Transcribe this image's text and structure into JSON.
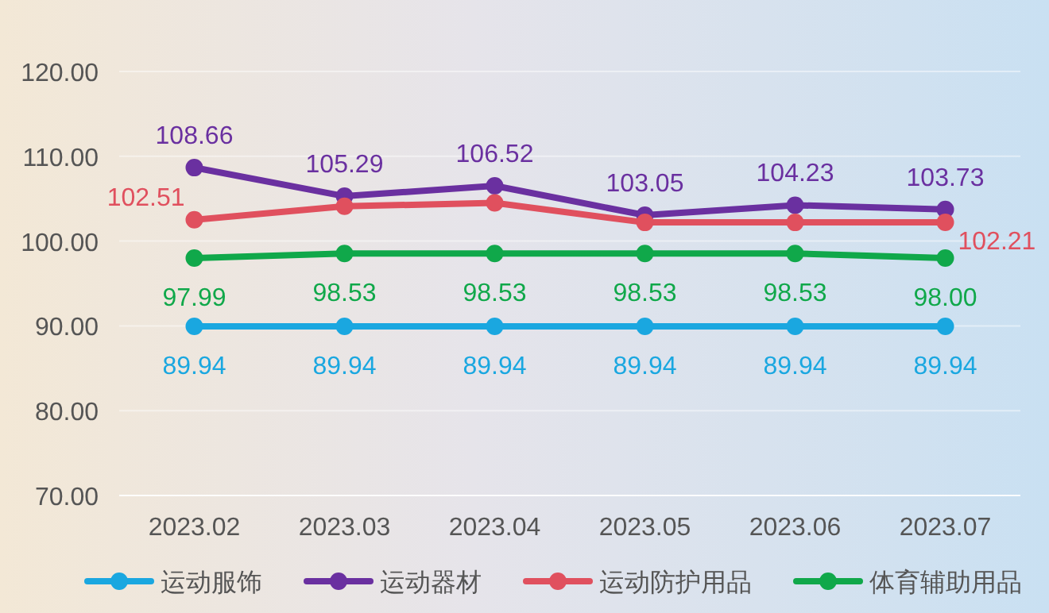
{
  "chart_data": {
    "type": "line",
    "categories": [
      "2023.02",
      "2023.03",
      "2023.04",
      "2023.05",
      "2023.06",
      "2023.07"
    ],
    "series": [
      {
        "name": "运动服饰",
        "color": "#1aa7e0",
        "values": [
          89.94,
          89.94,
          89.94,
          89.94,
          89.94,
          89.94
        ],
        "value_labels": [
          "89.94",
          "89.94",
          "89.94",
          "89.94",
          "89.94",
          "89.94"
        ]
      },
      {
        "name": "运动器材",
        "color": "#6a30a0",
        "values": [
          108.66,
          105.29,
          106.52,
          103.05,
          104.23,
          103.73
        ],
        "value_labels": [
          "108.66",
          "105.29",
          "106.52",
          "103.05",
          "104.23",
          "103.73"
        ]
      },
      {
        "name": "运动防护用品",
        "color": "#e0505e",
        "values": [
          102.51,
          104.1,
          104.5,
          102.2,
          102.2,
          102.21
        ],
        "value_labels": [
          "102.51",
          null,
          null,
          null,
          null,
          "102.21"
        ]
      },
      {
        "name": "体育辅助用品",
        "color": "#10a84a",
        "values": [
          97.99,
          98.53,
          98.53,
          98.53,
          98.53,
          98.0
        ],
        "value_labels": [
          "97.99",
          "98.53",
          "98.53",
          "98.53",
          "98.53",
          "98.00"
        ]
      }
    ],
    "ylim": [
      70,
      120
    ],
    "yticks": [
      {
        "value": 70,
        "label": "70.00"
      },
      {
        "value": 80,
        "label": "80.00"
      },
      {
        "value": 90,
        "label": "90.00"
      },
      {
        "value": 100,
        "label": "100.00"
      },
      {
        "value": 110,
        "label": "110.00"
      },
      {
        "value": 120,
        "label": "120.00"
      }
    ],
    "grid": "y",
    "legend": "bottom",
    "marker": "circle",
    "line_style": "solid"
  }
}
